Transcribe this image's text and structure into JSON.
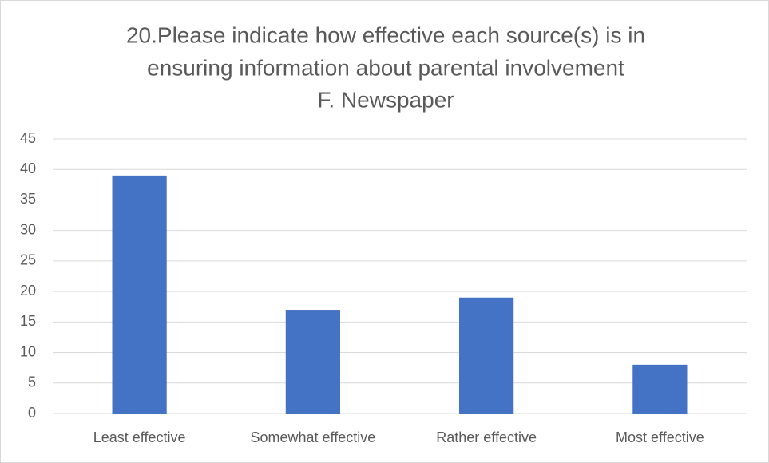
{
  "chart_data": {
    "type": "bar",
    "title": [
      "20.Please indicate how effective each source(s) is in",
      "ensuring information about parental involvement",
      "F. Newspaper"
    ],
    "categories": [
      "Least effective",
      "Somewhat effective",
      "Rather effective",
      "Most effective"
    ],
    "values": [
      39,
      17,
      19,
      8
    ],
    "color": "#4472c4",
    "ylim": [
      0,
      45
    ],
    "yticks": [
      0,
      5,
      10,
      15,
      20,
      25,
      30,
      35,
      40,
      45
    ],
    "grid": true
  }
}
